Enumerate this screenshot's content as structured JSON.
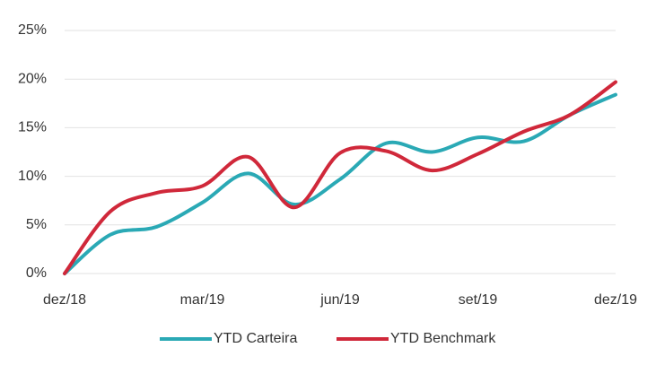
{
  "chart_data": {
    "type": "line",
    "categories": [
      "dez/18",
      null,
      null,
      "mar/19",
      null,
      null,
      "jun/19",
      null,
      null,
      "set/19",
      null,
      null,
      "dez/19"
    ],
    "series": [
      {
        "name": "YTD Carteira",
        "color": "#2aa9b5",
        "values": [
          0,
          4.0,
          4.8,
          7.3,
          10.3,
          7.1,
          9.7,
          13.4,
          12.5,
          14.0,
          13.6,
          16.3,
          18.4
        ]
      },
      {
        "name": "YTD Benchmark",
        "color": "#d0283a",
        "values": [
          0,
          6.4,
          8.3,
          9.0,
          12.0,
          6.8,
          12.4,
          12.6,
          10.6,
          12.3,
          14.6,
          16.3,
          19.7
        ]
      }
    ],
    "ylim": [
      0,
      25
    ],
    "yticks": [
      {
        "value": 0,
        "label": "0%"
      },
      {
        "value": 5,
        "label": "5%"
      },
      {
        "value": 10,
        "label": "10%"
      },
      {
        "value": 15,
        "label": "15%"
      },
      {
        "value": 20,
        "label": "20%"
      },
      {
        "value": 25,
        "label": "25%"
      }
    ],
    "grid": true,
    "legend": "bottom"
  }
}
